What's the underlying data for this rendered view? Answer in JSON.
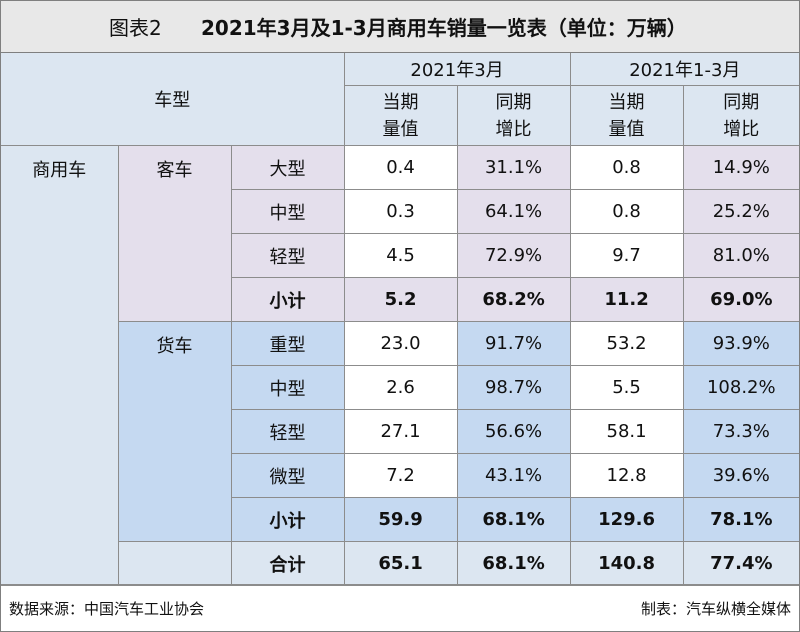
{
  "title": {
    "label": "图表2",
    "text": "2021年3月及1-3月商用车销量一览表（单位：万辆）"
  },
  "table": {
    "corner": "车型",
    "periods": [
      "2021年3月",
      "2021年1-3月"
    ],
    "metrics": [
      [
        "当期",
        "量值"
      ],
      [
        "同期",
        "增比"
      ]
    ],
    "group": "商用车",
    "sections": [
      {
        "name": "客车",
        "rows": [
          {
            "name": "大型",
            "values": [
              "0.4",
              "31.1%",
              "0.8",
              "14.9%"
            ]
          },
          {
            "name": "中型",
            "values": [
              "0.3",
              "64.1%",
              "0.8",
              "25.2%"
            ]
          },
          {
            "name": "轻型",
            "values": [
              "4.5",
              "72.9%",
              "9.7",
              "81.0%"
            ]
          }
        ],
        "subtotal": {
          "name": "小计",
          "values": [
            "5.2",
            "68.2%",
            "11.2",
            "69.0%"
          ]
        }
      },
      {
        "name": "货车",
        "rows": [
          {
            "name": "重型",
            "values": [
              "23.0",
              "91.7%",
              "53.2",
              "93.9%"
            ]
          },
          {
            "name": "中型",
            "values": [
              "2.6",
              "98.7%",
              "5.5",
              "108.2%"
            ]
          },
          {
            "name": "轻型",
            "values": [
              "27.1",
              "56.6%",
              "58.1",
              "73.3%"
            ]
          },
          {
            "name": "微型",
            "values": [
              "7.2",
              "43.1%",
              "12.8",
              "39.6%"
            ]
          }
        ],
        "subtotal": {
          "name": "小计",
          "values": [
            "59.9",
            "68.1%",
            "129.6",
            "78.1%"
          ]
        }
      }
    ],
    "total": {
      "name": "合计",
      "values": [
        "65.1",
        "68.1%",
        "140.8",
        "77.4%"
      ]
    }
  },
  "footer": {
    "source": "数据来源：中国汽车工业协会",
    "maker": "制表：汽车纵横全媒体"
  }
}
